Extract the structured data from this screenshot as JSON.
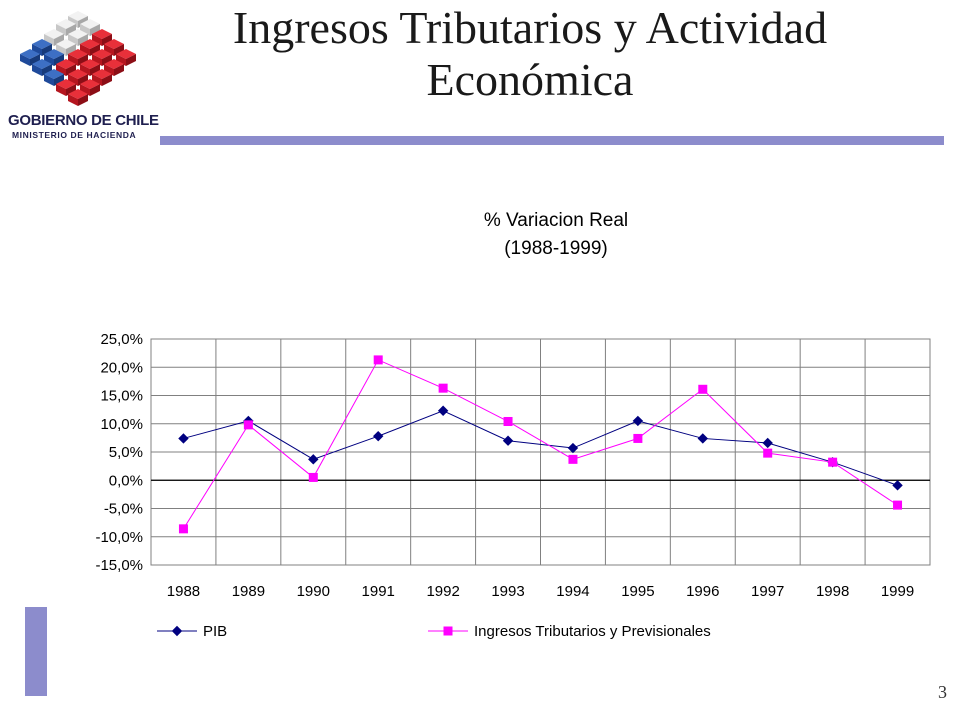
{
  "slide": {
    "title_line1": "Ingresos Tributarios y Actividad",
    "title_line2": "Económica",
    "page_number": "3",
    "logo": {
      "line1": "GOBIERNO DE CHILE",
      "line2": "MINISTERIO DE HACIENDA"
    }
  },
  "colors": {
    "accent_bar": "#8c8ccc",
    "pib_series": "#000080",
    "ingresos_series": "#ff00ff"
  },
  "chart_data": {
    "type": "line",
    "title": "% Variacion Real",
    "subtitle": "(1988-1999)",
    "xlabel": "",
    "ylabel": "",
    "ylim": [
      -15,
      25
    ],
    "y_ticks": [
      "25,0%",
      "20,0%",
      "15,0%",
      "10,0%",
      "5,0%",
      "0,0%",
      "-5,0%",
      "-10,0%",
      "-15,0%"
    ],
    "y_tick_values": [
      25,
      20,
      15,
      10,
      5,
      0,
      -5,
      -10,
      -15
    ],
    "categories": [
      "1988",
      "1989",
      "1990",
      "1991",
      "1992",
      "1993",
      "1994",
      "1995",
      "1996",
      "1997",
      "1998",
      "1999"
    ],
    "grid": true,
    "legend_position": "bottom",
    "series": [
      {
        "name": "PIB",
        "marker": "diamond",
        "color": "#000080",
        "values": [
          7.4,
          10.5,
          3.7,
          7.8,
          12.3,
          7.0,
          5.7,
          10.5,
          7.4,
          6.6,
          3.2,
          -0.9
        ]
      },
      {
        "name": "Ingresos Tributarios y Previsionales",
        "marker": "square",
        "color": "#ff00ff",
        "values": [
          -8.6,
          9.8,
          0.5,
          21.3,
          16.3,
          10.4,
          3.7,
          7.4,
          16.1,
          4.8,
          3.2,
          -4.4
        ]
      }
    ]
  }
}
